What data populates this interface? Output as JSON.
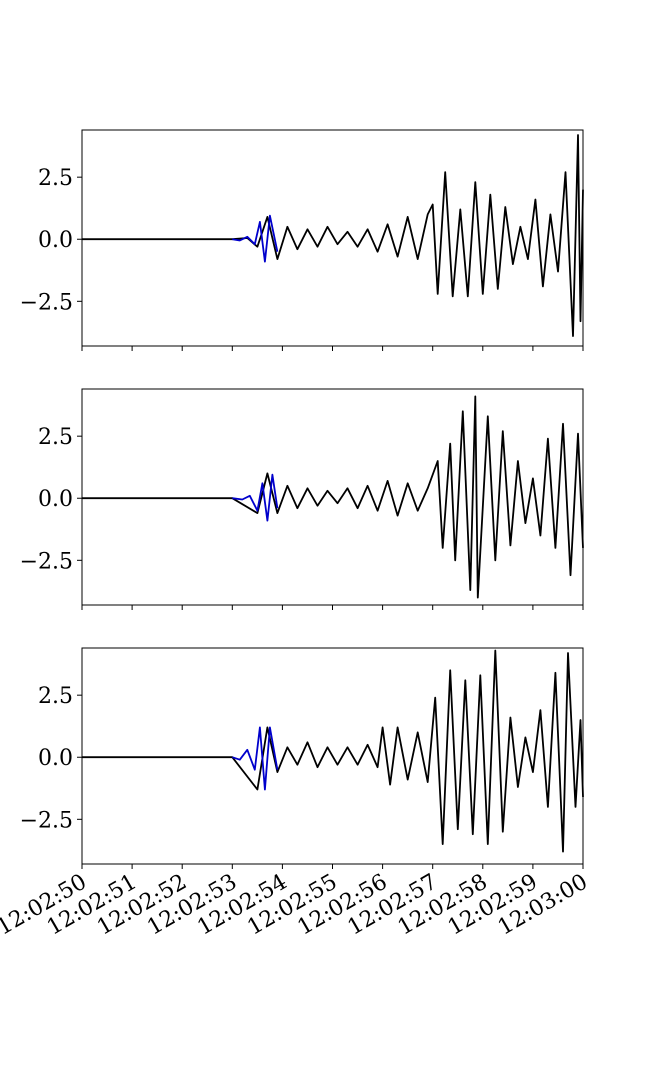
{
  "chart_data": [
    {
      "type": "line",
      "panel": 1,
      "x_ticks": [
        "12:02:50",
        "12:02:51",
        "12:02:52",
        "12:02:53",
        "12:02:54",
        "12:02:55",
        "12:02:56",
        "12:02:57",
        "12:02:58",
        "12:02:59",
        "12:03:00"
      ],
      "y_ticks": [
        "2.5",
        "0.0",
        "−2.5"
      ],
      "xlim": [
        "12:02:50",
        "12:03:00"
      ],
      "ylim": [
        -4.3,
        4.4
      ],
      "series": [
        {
          "color": "#000000",
          "segment": "full trace",
          "points": [
            [
              0,
              0
            ],
            [
              3,
              0.0
            ],
            [
              3.3,
              0.05
            ],
            [
              3.5,
              -0.3
            ],
            [
              3.7,
              0.9
            ],
            [
              3.9,
              -0.8
            ],
            [
              4.1,
              0.5
            ],
            [
              4.3,
              -0.4
            ],
            [
              4.5,
              0.4
            ],
            [
              4.7,
              -0.3
            ],
            [
              4.9,
              0.5
            ],
            [
              5.1,
              -0.2
            ],
            [
              5.3,
              0.3
            ],
            [
              5.5,
              -0.3
            ],
            [
              5.7,
              0.4
            ],
            [
              5.9,
              -0.5
            ],
            [
              6.1,
              0.6
            ],
            [
              6.3,
              -0.7
            ],
            [
              6.5,
              0.9
            ],
            [
              6.7,
              -0.8
            ],
            [
              6.9,
              1.0
            ],
            [
              7.0,
              1.4
            ],
            [
              7.1,
              -2.2
            ],
            [
              7.25,
              2.7
            ],
            [
              7.4,
              -2.3
            ],
            [
              7.55,
              1.2
            ],
            [
              7.7,
              -2.3
            ],
            [
              7.85,
              2.3
            ],
            [
              8.0,
              -2.2
            ],
            [
              8.15,
              1.8
            ],
            [
              8.3,
              -2.0
            ],
            [
              8.45,
              1.3
            ],
            [
              8.6,
              -1.0
            ],
            [
              8.75,
              0.5
            ],
            [
              8.9,
              -0.8
            ],
            [
              9.05,
              1.6
            ],
            [
              9.2,
              -1.9
            ],
            [
              9.35,
              1.0
            ],
            [
              9.5,
              -1.3
            ],
            [
              9.65,
              2.7
            ],
            [
              9.8,
              -3.9
            ],
            [
              9.9,
              4.2
            ],
            [
              9.95,
              -3.3
            ],
            [
              10.0,
              2.0
            ]
          ]
        },
        {
          "color": "#0000cc",
          "segment": "highlighted window",
          "points": [
            [
              3.0,
              0.0
            ],
            [
              3.15,
              -0.05
            ],
            [
              3.3,
              0.1
            ],
            [
              3.45,
              -0.2
            ],
            [
              3.55,
              0.7
            ],
            [
              3.65,
              -0.9
            ],
            [
              3.75,
              0.95
            ],
            [
              3.9,
              -0.5
            ]
          ]
        }
      ]
    },
    {
      "type": "line",
      "panel": 2,
      "x_ticks": [
        "12:02:50",
        "12:02:51",
        "12:02:52",
        "12:02:53",
        "12:02:54",
        "12:02:55",
        "12:02:56",
        "12:02:57",
        "12:02:58",
        "12:02:59",
        "12:03:00"
      ],
      "y_ticks": [
        "2.5",
        "0.0",
        "−2.5"
      ],
      "xlim": [
        "12:02:50",
        "12:03:00"
      ],
      "ylim": [
        -4.3,
        4.4
      ],
      "series": [
        {
          "color": "#000000",
          "segment": "full trace",
          "points": [
            [
              0,
              0
            ],
            [
              3,
              0.0
            ],
            [
              3.5,
              -0.6
            ],
            [
              3.7,
              1.0
            ],
            [
              3.9,
              -0.6
            ],
            [
              4.1,
              0.5
            ],
            [
              4.3,
              -0.4
            ],
            [
              4.5,
              0.4
            ],
            [
              4.7,
              -0.3
            ],
            [
              4.9,
              0.3
            ],
            [
              5.1,
              -0.2
            ],
            [
              5.3,
              0.4
            ],
            [
              5.5,
              -0.4
            ],
            [
              5.7,
              0.5
            ],
            [
              5.9,
              -0.5
            ],
            [
              6.1,
              0.7
            ],
            [
              6.3,
              -0.7
            ],
            [
              6.5,
              0.6
            ],
            [
              6.7,
              -0.5
            ],
            [
              6.9,
              0.4
            ],
            [
              7.1,
              1.5
            ],
            [
              7.2,
              -2.0
            ],
            [
              7.35,
              2.2
            ],
            [
              7.45,
              -2.5
            ],
            [
              7.6,
              3.5
            ],
            [
              7.75,
              -3.7
            ],
            [
              7.85,
              4.1
            ],
            [
              7.9,
              -4.0
            ],
            [
              8.1,
              3.3
            ],
            [
              8.25,
              -2.5
            ],
            [
              8.4,
              2.7
            ],
            [
              8.55,
              -1.9
            ],
            [
              8.7,
              1.5
            ],
            [
              8.85,
              -1.0
            ],
            [
              9.0,
              0.8
            ],
            [
              9.15,
              -1.5
            ],
            [
              9.3,
              2.4
            ],
            [
              9.45,
              -2.0
            ],
            [
              9.6,
              3.0
            ],
            [
              9.75,
              -3.1
            ],
            [
              9.9,
              2.6
            ],
            [
              10.0,
              -2.0
            ]
          ]
        },
        {
          "color": "#0000cc",
          "segment": "highlighted window",
          "points": [
            [
              3.0,
              0.0
            ],
            [
              3.2,
              -0.05
            ],
            [
              3.35,
              0.1
            ],
            [
              3.5,
              -0.5
            ],
            [
              3.6,
              0.6
            ],
            [
              3.7,
              -0.9
            ],
            [
              3.8,
              0.95
            ],
            [
              3.9,
              -0.4
            ]
          ]
        }
      ]
    },
    {
      "type": "line",
      "panel": 3,
      "x_ticks": [
        "12:02:50",
        "12:02:51",
        "12:02:52",
        "12:02:53",
        "12:02:54",
        "12:02:55",
        "12:02:56",
        "12:02:57",
        "12:02:58",
        "12:02:59",
        "12:03:00"
      ],
      "y_ticks": [
        "2.5",
        "0.0",
        "−2.5"
      ],
      "xlim": [
        "12:02:50",
        "12:03:00"
      ],
      "ylim": [
        -4.3,
        4.4
      ],
      "series": [
        {
          "color": "#000000",
          "segment": "full trace",
          "points": [
            [
              0,
              0
            ],
            [
              3,
              0.0
            ],
            [
              3.5,
              -1.3
            ],
            [
              3.7,
              1.2
            ],
            [
              3.9,
              -0.6
            ],
            [
              4.1,
              0.4
            ],
            [
              4.3,
              -0.3
            ],
            [
              4.5,
              0.6
            ],
            [
              4.7,
              -0.4
            ],
            [
              4.9,
              0.4
            ],
            [
              5.1,
              -0.3
            ],
            [
              5.3,
              0.4
            ],
            [
              5.5,
              -0.3
            ],
            [
              5.7,
              0.5
            ],
            [
              5.9,
              -0.4
            ],
            [
              6.0,
              1.2
            ],
            [
              6.15,
              -1.1
            ],
            [
              6.3,
              1.2
            ],
            [
              6.5,
              -0.9
            ],
            [
              6.7,
              1.0
            ],
            [
              6.9,
              -1.0
            ],
            [
              7.05,
              2.4
            ],
            [
              7.2,
              -3.5
            ],
            [
              7.35,
              3.5
            ],
            [
              7.5,
              -2.9
            ],
            [
              7.65,
              3.1
            ],
            [
              7.8,
              -3.1
            ],
            [
              7.95,
              3.3
            ],
            [
              8.1,
              -3.5
            ],
            [
              8.25,
              4.3
            ],
            [
              8.4,
              -3.0
            ],
            [
              8.55,
              1.6
            ],
            [
              8.7,
              -1.2
            ],
            [
              8.85,
              0.8
            ],
            [
              9.0,
              -0.6
            ],
            [
              9.15,
              1.9
            ],
            [
              9.3,
              -2.0
            ],
            [
              9.45,
              3.4
            ],
            [
              9.6,
              -3.8
            ],
            [
              9.7,
              4.2
            ],
            [
              9.85,
              -2.0
            ],
            [
              9.95,
              1.5
            ],
            [
              10.0,
              -1.6
            ]
          ]
        },
        {
          "color": "#0000cc",
          "segment": "highlighted window",
          "points": [
            [
              3.0,
              0.0
            ],
            [
              3.15,
              -0.1
            ],
            [
              3.3,
              0.3
            ],
            [
              3.45,
              -0.5
            ],
            [
              3.55,
              1.2
            ],
            [
              3.65,
              -1.3
            ],
            [
              3.75,
              1.2
            ],
            [
              3.9,
              -0.5
            ]
          ]
        }
      ]
    }
  ]
}
